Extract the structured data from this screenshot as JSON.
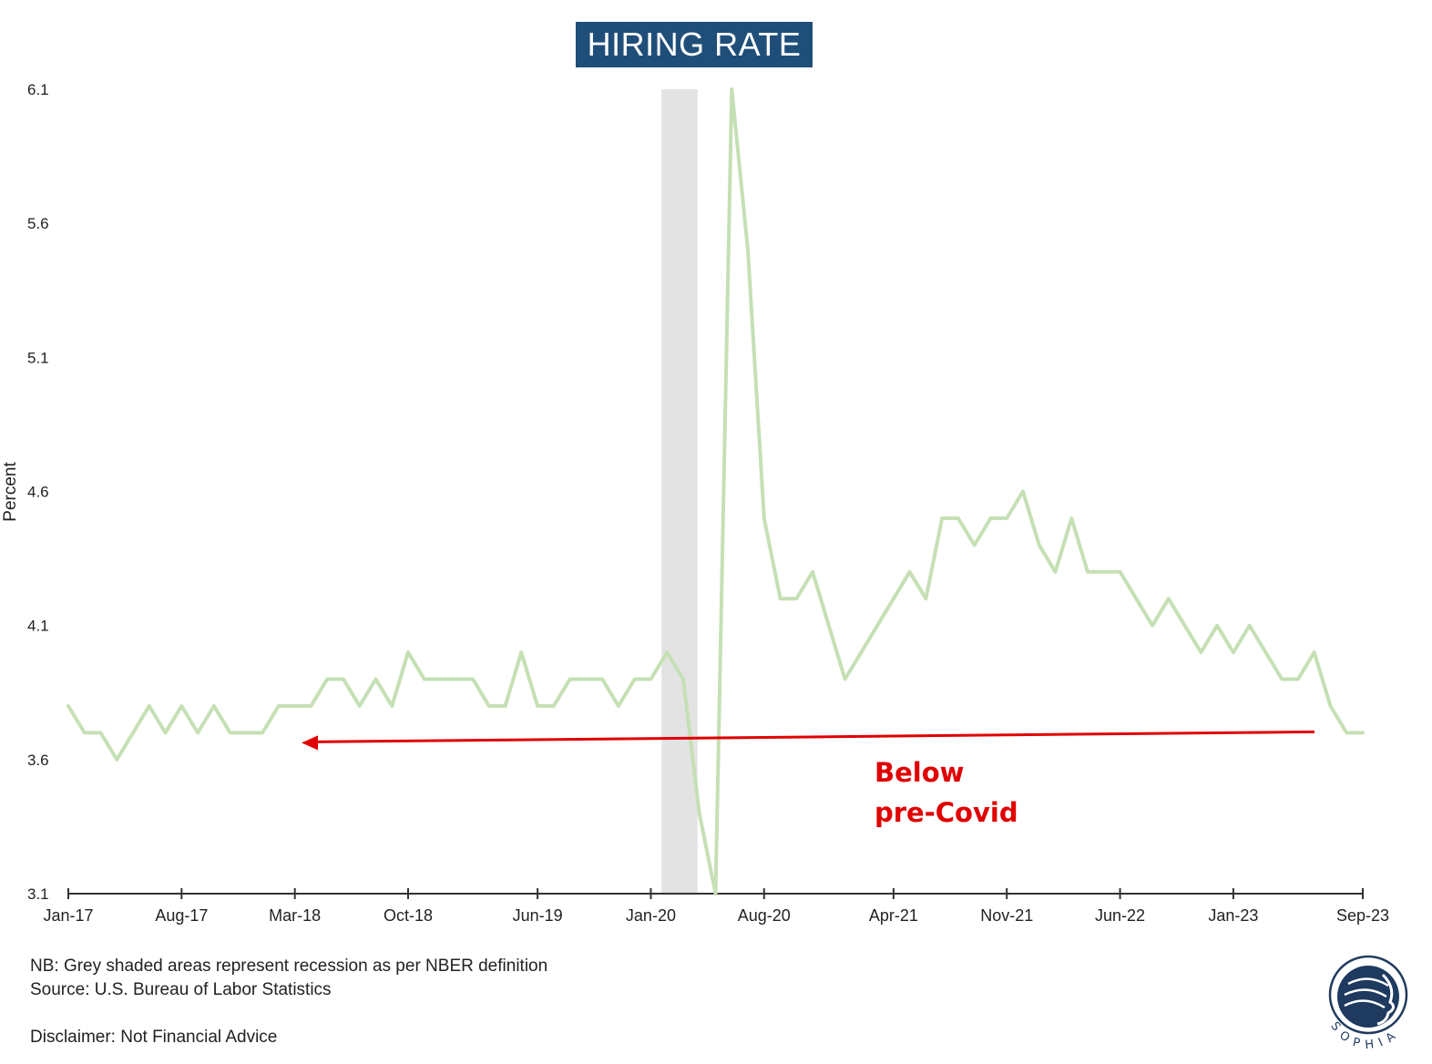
{
  "chart_data": {
    "type": "line",
    "title": "HIRING RATE",
    "xlabel": "",
    "ylabel": "Percent",
    "ylim": [
      3.1,
      6.1
    ],
    "yticks": [
      "3.1",
      "3.6",
      "4.1",
      "4.6",
      "5.1",
      "5.6",
      "6.1"
    ],
    "xtick_labels": [
      "Jan-17",
      "Aug-17",
      "Mar-18",
      "Oct-18",
      "Jun-19",
      "Jan-20",
      "Aug-20",
      "Apr-21",
      "Nov-21",
      "Jun-22",
      "Jan-23",
      "Sep-23"
    ],
    "x_start": "Jan-17",
    "x_end": "Sep-23",
    "recession_shading": {
      "start": "Feb-20",
      "end": "Apr-20"
    },
    "series": [
      {
        "color": "#c5e0b4",
        "values": [
          3.8,
          3.7,
          3.7,
          3.6,
          3.7,
          3.8,
          3.7,
          3.8,
          3.7,
          3.8,
          3.7,
          3.7,
          3.7,
          3.8,
          3.8,
          3.8,
          3.9,
          3.9,
          3.8,
          3.9,
          3.8,
          4.0,
          3.9,
          3.9,
          3.9,
          3.9,
          3.8,
          3.8,
          4.0,
          3.8,
          3.8,
          3.9,
          3.9,
          3.9,
          3.8,
          3.9,
          3.9,
          4.0,
          3.9,
          3.4,
          3.1,
          6.1,
          5.5,
          4.5,
          4.2,
          4.2,
          4.3,
          4.1,
          3.9,
          4.0,
          4.1,
          4.2,
          4.3,
          4.2,
          4.5,
          4.5,
          4.4,
          4.5,
          4.5,
          4.6,
          4.4,
          4.3,
          4.5,
          4.3,
          4.3,
          4.3,
          4.2,
          4.1,
          4.2,
          4.1,
          4.0,
          4.1,
          4.0,
          4.1,
          4.0,
          3.9,
          3.9,
          4.0,
          3.8,
          3.7,
          3.7
        ]
      }
    ],
    "annotation": {
      "lines": [
        "Below",
        "pre-Covid"
      ],
      "color": "#e00000",
      "arrow_level": 3.7
    }
  },
  "notes": {
    "nb": "NB: Grey shaded areas represent recession as per NBER definition",
    "source": "Source: U.S. Bureau of Labor Statistics",
    "disclaimer": "Disclaimer: Not Financial Advice"
  },
  "logo": {
    "text": "SOPHIA",
    "icon": "sophia-logo-icon"
  }
}
